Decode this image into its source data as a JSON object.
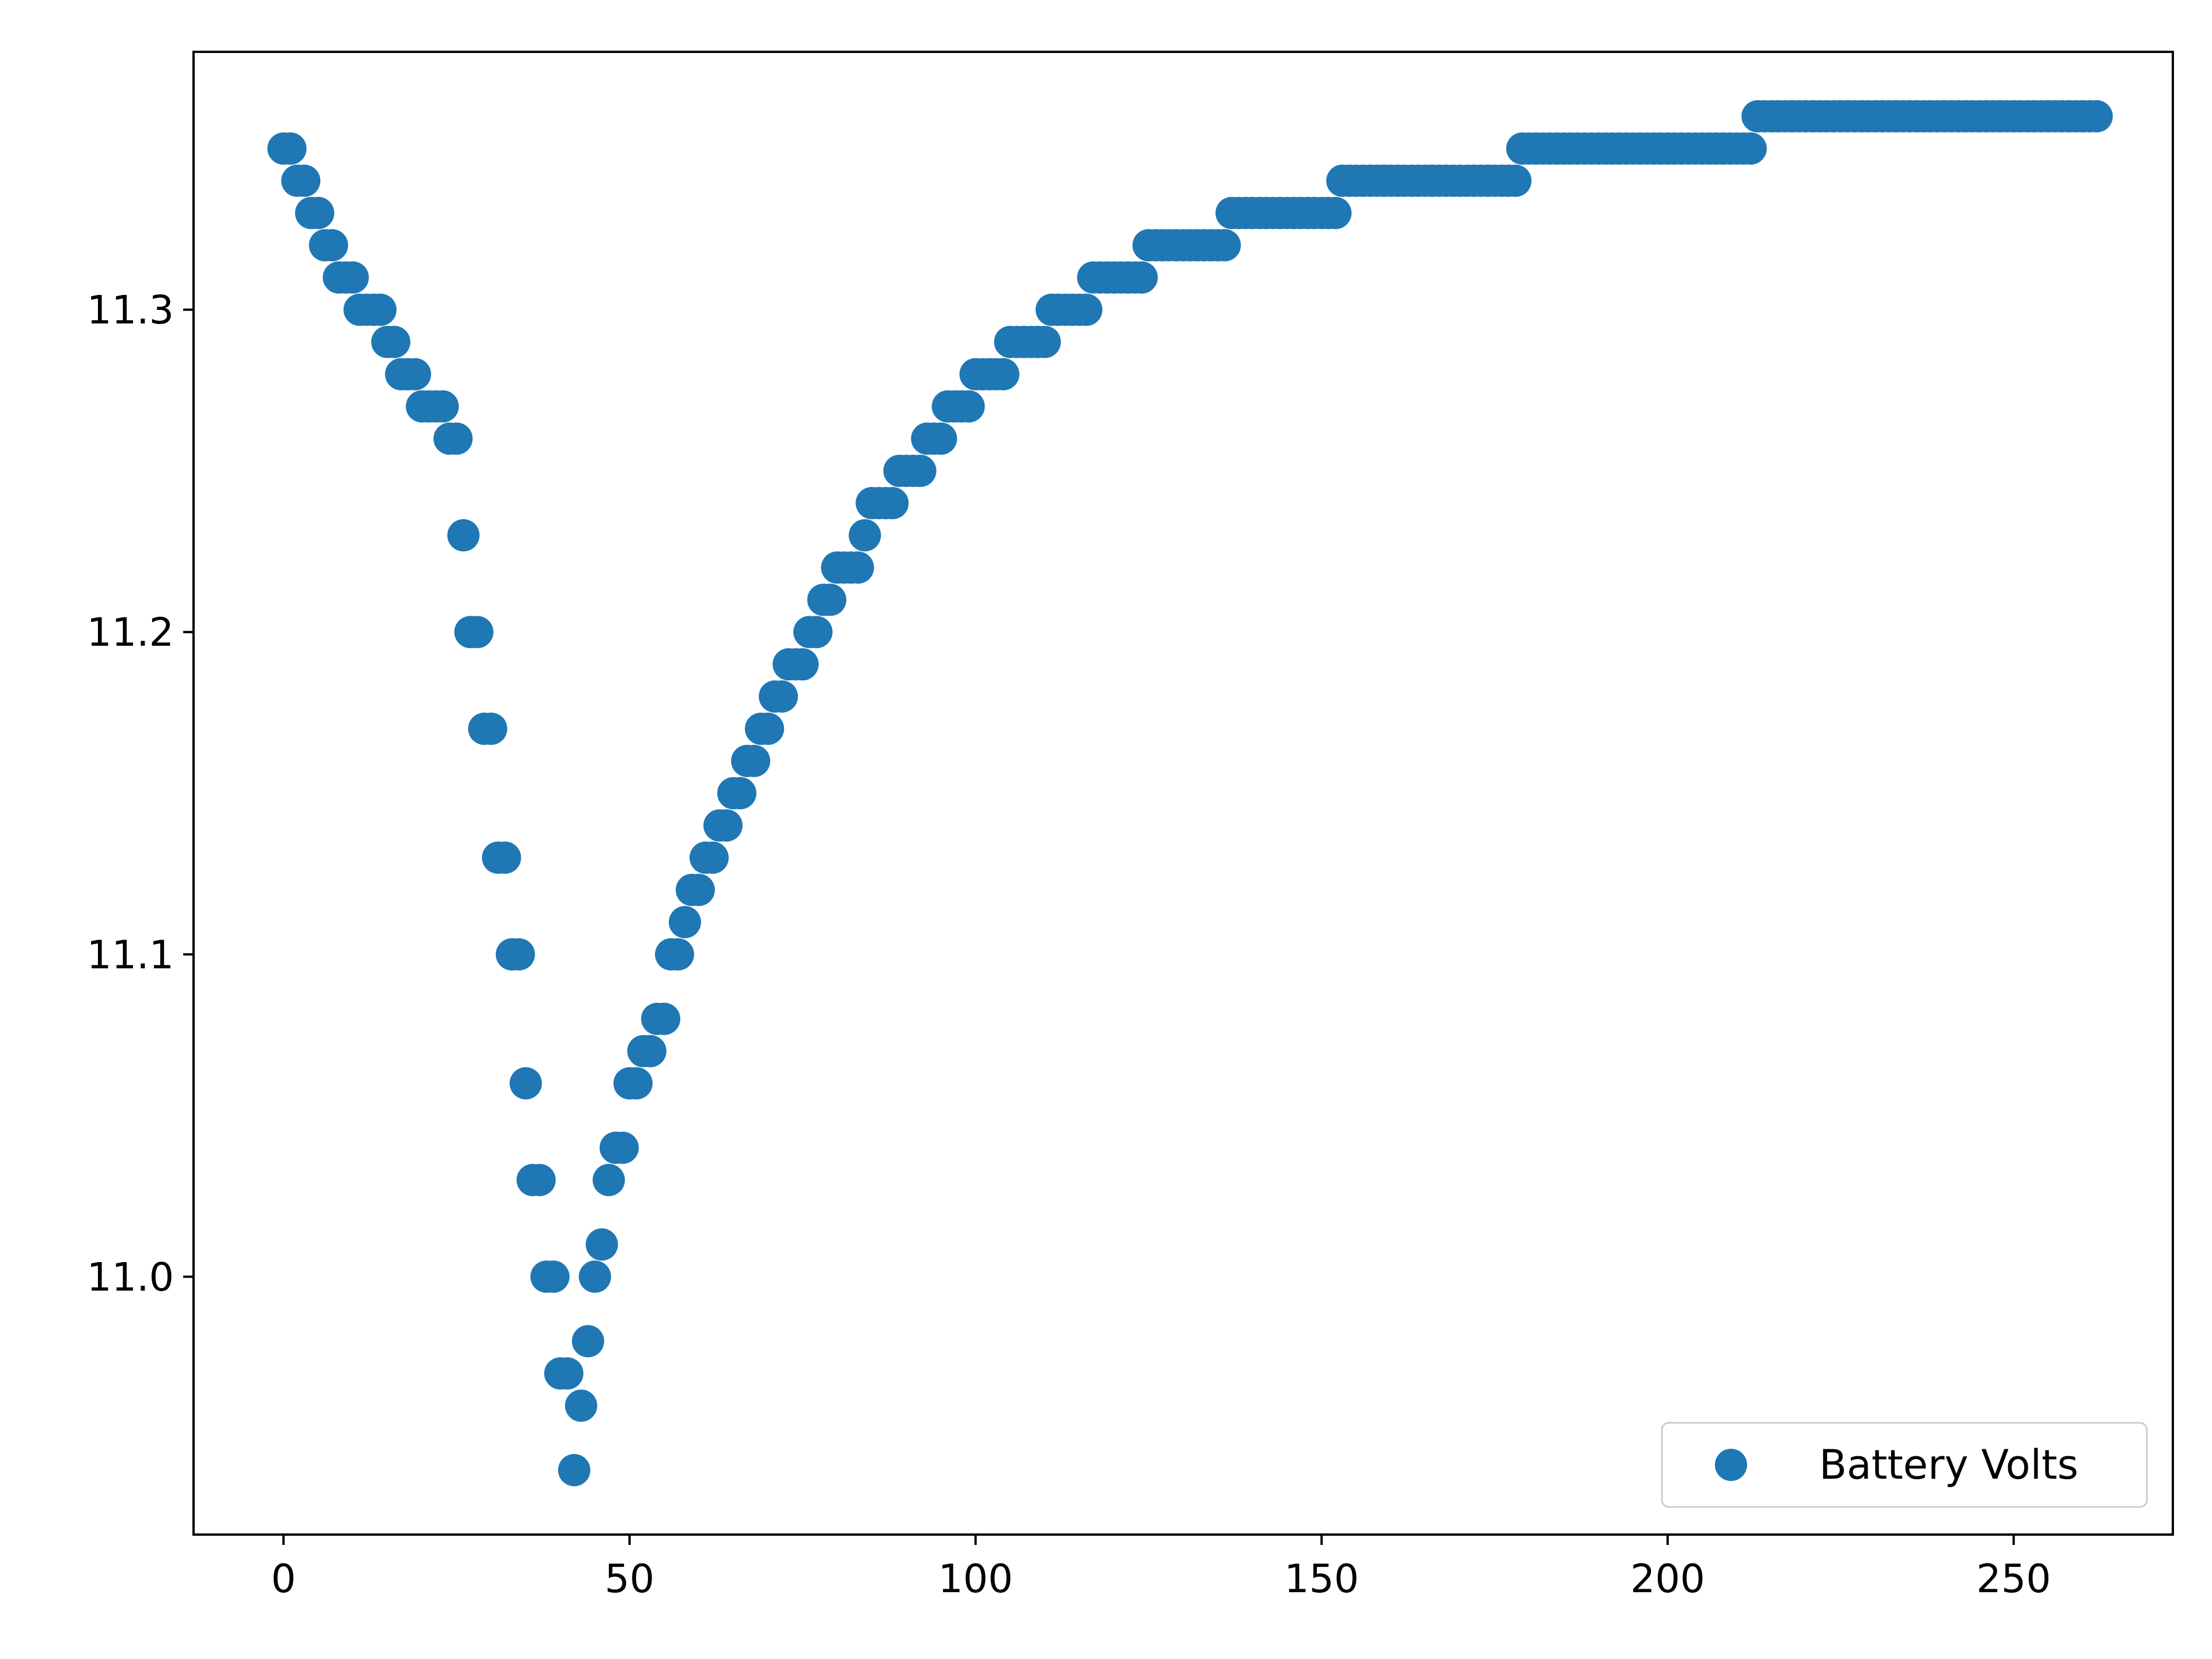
{
  "chart_data": {
    "type": "scatter",
    "title": "",
    "xlabel": "",
    "ylabel": "",
    "xlim": [
      -13,
      273
    ],
    "ylim": [
      10.92,
      11.38
    ],
    "x_ticks": [
      0,
      50,
      100,
      150,
      200,
      250
    ],
    "y_ticks": [
      11.0,
      11.1,
      11.2,
      11.3
    ],
    "x_tick_labels": [
      "0",
      "50",
      "100",
      "150",
      "200",
      "250"
    ],
    "y_tick_labels": [
      "11.0",
      "11.1",
      "11.2",
      "11.3"
    ],
    "grid": false,
    "legend_position": "lower-right",
    "series": [
      {
        "name": "Battery Volts",
        "color": "#1f77b4",
        "marker": "circle",
        "points": [
          [
            0,
            11.35
          ],
          [
            1,
            11.35
          ],
          [
            2,
            11.34
          ],
          [
            3,
            11.34
          ],
          [
            4,
            11.33
          ],
          [
            5,
            11.33
          ],
          [
            6,
            11.32
          ],
          [
            7,
            11.32
          ],
          [
            8,
            11.31
          ],
          [
            9,
            11.31
          ],
          [
            10,
            11.31
          ],
          [
            11,
            11.3
          ],
          [
            12,
            11.3
          ],
          [
            13,
            11.3
          ],
          [
            14,
            11.3
          ],
          [
            15,
            11.29
          ],
          [
            16,
            11.29
          ],
          [
            17,
            11.28
          ],
          [
            18,
            11.28
          ],
          [
            19,
            11.28
          ],
          [
            20,
            11.27
          ],
          [
            21,
            11.27
          ],
          [
            22,
            11.27
          ],
          [
            23,
            11.27
          ],
          [
            24,
            11.26
          ],
          [
            25,
            11.26
          ],
          [
            26,
            11.23
          ],
          [
            27,
            11.2
          ],
          [
            28,
            11.2
          ],
          [
            29,
            11.17
          ],
          [
            30,
            11.17
          ],
          [
            31,
            11.13
          ],
          [
            32,
            11.13
          ],
          [
            33,
            11.1
          ],
          [
            34,
            11.1
          ],
          [
            35,
            11.06
          ],
          [
            36,
            11.03
          ],
          [
            37,
            11.03
          ],
          [
            38,
            11.0
          ],
          [
            39,
            11.0
          ],
          [
            40,
            10.97
          ],
          [
            41,
            10.97
          ],
          [
            42,
            10.94
          ],
          [
            43,
            10.96
          ],
          [
            44,
            10.98
          ],
          [
            45,
            11.0
          ],
          [
            46,
            11.01
          ],
          [
            47,
            11.03
          ],
          [
            48,
            11.04
          ],
          [
            49,
            11.04
          ],
          [
            50,
            11.06
          ],
          [
            51,
            11.06
          ],
          [
            52,
            11.07
          ],
          [
            53,
            11.07
          ],
          [
            54,
            11.08
          ],
          [
            55,
            11.08
          ],
          [
            56,
            11.1
          ],
          [
            57,
            11.1
          ],
          [
            58,
            11.11
          ],
          [
            59,
            11.12
          ],
          [
            60,
            11.12
          ],
          [
            61,
            11.13
          ],
          [
            62,
            11.13
          ],
          [
            63,
            11.14
          ],
          [
            64,
            11.14
          ],
          [
            65,
            11.15
          ],
          [
            66,
            11.15
          ],
          [
            67,
            11.16
          ],
          [
            68,
            11.16
          ],
          [
            69,
            11.17
          ],
          [
            70,
            11.17
          ],
          [
            71,
            11.18
          ],
          [
            72,
            11.18
          ],
          [
            73,
            11.19
          ],
          [
            74,
            11.19
          ],
          [
            75,
            11.19
          ],
          [
            76,
            11.2
          ],
          [
            77,
            11.2
          ],
          [
            78,
            11.21
          ],
          [
            79,
            11.21
          ],
          [
            80,
            11.22
          ],
          [
            81,
            11.22
          ],
          [
            82,
            11.22
          ],
          [
            83,
            11.22
          ],
          [
            84,
            11.23
          ],
          [
            85,
            11.24
          ],
          [
            86,
            11.24
          ],
          [
            87,
            11.24
          ],
          [
            88,
            11.24
          ],
          [
            89,
            11.25
          ],
          [
            90,
            11.25
          ],
          [
            91,
            11.25
          ],
          [
            92,
            11.25
          ],
          [
            93,
            11.26
          ],
          [
            94,
            11.26
          ],
          [
            95,
            11.26
          ],
          [
            96,
            11.27
          ],
          [
            97,
            11.27
          ],
          [
            98,
            11.27
          ],
          [
            99,
            11.27
          ],
          [
            100,
            11.28
          ],
          [
            101,
            11.28
          ],
          [
            102,
            11.28
          ],
          [
            103,
            11.28
          ],
          [
            104,
            11.28
          ],
          [
            105,
            11.29
          ],
          [
            106,
            11.29
          ],
          [
            107,
            11.29
          ],
          [
            108,
            11.29
          ],
          [
            109,
            11.29
          ],
          [
            110,
            11.29
          ],
          [
            111,
            11.3
          ],
          [
            112,
            11.3
          ],
          [
            113,
            11.3
          ],
          [
            114,
            11.3
          ],
          [
            115,
            11.3
          ],
          [
            116,
            11.3
          ],
          [
            117,
            11.31
          ],
          [
            118,
            11.31
          ],
          [
            119,
            11.31
          ],
          [
            120,
            11.31
          ],
          [
            121,
            11.31
          ],
          [
            122,
            11.31
          ],
          [
            123,
            11.31
          ],
          [
            124,
            11.31
          ],
          [
            125,
            11.32
          ],
          [
            126,
            11.32
          ],
          [
            127,
            11.32
          ],
          [
            128,
            11.32
          ],
          [
            129,
            11.32
          ],
          [
            130,
            11.32
          ],
          [
            131,
            11.32
          ],
          [
            132,
            11.32
          ],
          [
            133,
            11.32
          ],
          [
            134,
            11.32
          ],
          [
            135,
            11.32
          ],
          [
            136,
            11.32
          ],
          [
            137,
            11.33
          ],
          [
            138,
            11.33
          ],
          [
            139,
            11.33
          ],
          [
            140,
            11.33
          ],
          [
            141,
            11.33
          ],
          [
            142,
            11.33
          ],
          [
            143,
            11.33
          ],
          [
            144,
            11.33
          ],
          [
            145,
            11.33
          ],
          [
            146,
            11.33
          ],
          [
            147,
            11.33
          ],
          [
            148,
            11.33
          ],
          [
            149,
            11.33
          ],
          [
            150,
            11.33
          ],
          [
            151,
            11.33
          ],
          [
            152,
            11.33
          ],
          [
            153,
            11.34
          ],
          [
            154,
            11.34
          ],
          [
            155,
            11.34
          ],
          [
            156,
            11.34
          ],
          [
            157,
            11.34
          ],
          [
            158,
            11.34
          ],
          [
            159,
            11.34
          ],
          [
            160,
            11.34
          ],
          [
            161,
            11.34
          ],
          [
            162,
            11.34
          ],
          [
            163,
            11.34
          ],
          [
            164,
            11.34
          ],
          [
            165,
            11.34
          ],
          [
            166,
            11.34
          ],
          [
            167,
            11.34
          ],
          [
            168,
            11.34
          ],
          [
            169,
            11.34
          ],
          [
            170,
            11.34
          ],
          [
            171,
            11.34
          ],
          [
            172,
            11.34
          ],
          [
            173,
            11.34
          ],
          [
            174,
            11.34
          ],
          [
            175,
            11.34
          ],
          [
            176,
            11.34
          ],
          [
            177,
            11.34
          ],
          [
            178,
            11.34
          ],
          [
            179,
            11.35
          ],
          [
            180,
            11.35
          ],
          [
            181,
            11.35
          ],
          [
            182,
            11.35
          ],
          [
            183,
            11.35
          ],
          [
            184,
            11.35
          ],
          [
            185,
            11.35
          ],
          [
            186,
            11.35
          ],
          [
            187,
            11.35
          ],
          [
            188,
            11.35
          ],
          [
            189,
            11.35
          ],
          [
            190,
            11.35
          ],
          [
            191,
            11.35
          ],
          [
            192,
            11.35
          ],
          [
            193,
            11.35
          ],
          [
            194,
            11.35
          ],
          [
            195,
            11.35
          ],
          [
            196,
            11.35
          ],
          [
            197,
            11.35
          ],
          [
            198,
            11.35
          ],
          [
            199,
            11.35
          ],
          [
            200,
            11.35
          ],
          [
            201,
            11.35
          ],
          [
            202,
            11.35
          ],
          [
            203,
            11.35
          ],
          [
            204,
            11.35
          ],
          [
            205,
            11.35
          ],
          [
            206,
            11.35
          ],
          [
            207,
            11.35
          ],
          [
            208,
            11.35
          ],
          [
            209,
            11.35
          ],
          [
            210,
            11.35
          ],
          [
            211,
            11.35
          ],
          [
            212,
            11.35
          ],
          [
            213,
            11.36
          ],
          [
            214,
            11.36
          ],
          [
            215,
            11.36
          ],
          [
            216,
            11.36
          ],
          [
            217,
            11.36
          ],
          [
            218,
            11.36
          ],
          [
            219,
            11.36
          ],
          [
            220,
            11.36
          ],
          [
            221,
            11.36
          ],
          [
            222,
            11.36
          ],
          [
            223,
            11.36
          ],
          [
            224,
            11.36
          ],
          [
            225,
            11.36
          ],
          [
            226,
            11.36
          ],
          [
            227,
            11.36
          ],
          [
            228,
            11.36
          ],
          [
            229,
            11.36
          ],
          [
            230,
            11.36
          ],
          [
            231,
            11.36
          ],
          [
            232,
            11.36
          ],
          [
            233,
            11.36
          ],
          [
            234,
            11.36
          ],
          [
            235,
            11.36
          ],
          [
            236,
            11.36
          ],
          [
            237,
            11.36
          ],
          [
            238,
            11.36
          ],
          [
            239,
            11.36
          ],
          [
            240,
            11.36
          ],
          [
            241,
            11.36
          ],
          [
            242,
            11.36
          ],
          [
            243,
            11.36
          ],
          [
            244,
            11.36
          ],
          [
            245,
            11.36
          ],
          [
            246,
            11.36
          ],
          [
            247,
            11.36
          ],
          [
            248,
            11.36
          ],
          [
            249,
            11.36
          ],
          [
            250,
            11.36
          ],
          [
            251,
            11.36
          ],
          [
            252,
            11.36
          ],
          [
            253,
            11.36
          ],
          [
            254,
            11.36
          ],
          [
            255,
            11.36
          ],
          [
            256,
            11.36
          ],
          [
            257,
            11.36
          ],
          [
            258,
            11.36
          ],
          [
            259,
            11.36
          ],
          [
            260,
            11.36
          ],
          [
            261,
            11.36
          ],
          [
            262,
            11.36
          ]
        ]
      }
    ]
  }
}
